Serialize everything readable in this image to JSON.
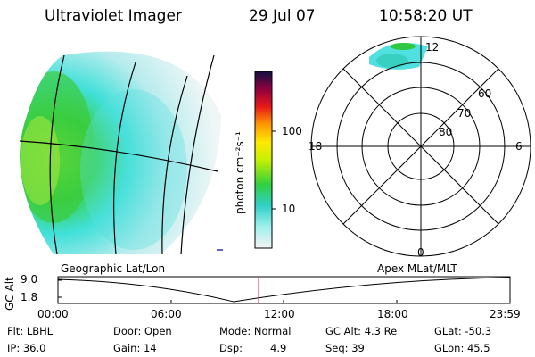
{
  "header": {
    "title": "Ultraviolet Imager",
    "date": "29 Jul 07",
    "time": "10:58:20 UT"
  },
  "colorbar": {
    "label": "photon cm⁻²s⁻¹",
    "ticks": [
      "100",
      "10"
    ]
  },
  "polar": {
    "mlt_labels": {
      "top": "12",
      "left": "18",
      "right": "6",
      "bottom": "0"
    },
    "lat_labels": [
      "60",
      "70",
      "80"
    ]
  },
  "timeline": {
    "left_label": "Geographic Lat/Lon",
    "right_label": "Apex MLat/MLT",
    "axis_title": "GC Alt",
    "y_ticks": [
      "9.0",
      "1.8"
    ],
    "x_ticks": [
      "00:00",
      "06:00",
      "12:00",
      "18:00",
      "23:59"
    ]
  },
  "status": {
    "filter": "Flt: LBHL",
    "ip": "IP: 36.0",
    "door": "Door: Open",
    "gain": "Gain: 14",
    "mode": "Mode: Normal",
    "dsp_label": "Dsp:",
    "dsp_value": "4.9",
    "gc_alt": "GC Alt: 4.3 Re",
    "seq": "Seq: 39",
    "glat": "GLat: -50.3",
    "glon": "GLon: 45.5"
  },
  "colors": {
    "cyan": "#40e0e0",
    "green": "#30d040",
    "marker": "#d03030"
  }
}
